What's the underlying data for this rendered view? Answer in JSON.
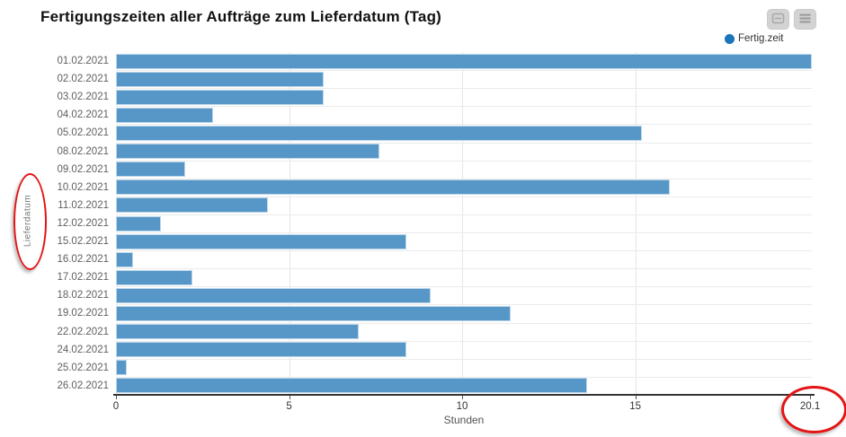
{
  "title": "Fertigungszeiten aller Aufträge zum Lieferdatum (Tag)",
  "toolbar": {
    "buttons": [
      {
        "name": "collapse",
        "icon": "window-collapse-icon"
      },
      {
        "name": "menu",
        "icon": "menu-icon"
      }
    ]
  },
  "legend": {
    "label": "Fertig.zeit",
    "color": "#1b75bb"
  },
  "chart_data": {
    "type": "bar",
    "orientation": "horizontal",
    "title": "Fertigungszeiten aller Aufträge zum Lieferdatum (Tag)",
    "series_name": "Fertig.zeit",
    "categories": [
      "01.02.2021",
      "02.02.2021",
      "03.02.2021",
      "04.02.2021",
      "05.02.2021",
      "08.02.2021",
      "09.02.2021",
      "10.02.2021",
      "11.02.2021",
      "12.02.2021",
      "15.02.2021",
      "16.02.2021",
      "17.02.2021",
      "18.02.2021",
      "19.02.2021",
      "22.02.2021",
      "24.02.2021",
      "25.02.2021",
      "26.02.2021"
    ],
    "values": [
      20.1,
      6.0,
      6.0,
      2.8,
      15.2,
      7.6,
      2.0,
      16.0,
      4.4,
      1.3,
      8.4,
      0.5,
      2.2,
      9.1,
      11.4,
      7.0,
      8.4,
      0.3,
      13.6
    ],
    "xlabel": "Stunden",
    "ylabel": "Lieferdatum",
    "xlim": [
      0,
      20.1
    ],
    "xticks": [
      {
        "value": 0,
        "label": "0"
      },
      {
        "value": 5,
        "label": "5"
      },
      {
        "value": 10,
        "label": "10"
      },
      {
        "value": 15,
        "label": "15"
      },
      {
        "value": 20.05,
        "label": "20.1"
      }
    ],
    "grid": "vertical gridlines at 5/10/15, light horizontal row separators",
    "legend_position": "top-right",
    "bar_color": "#5697c8"
  },
  "annotations": [
    {
      "shape": "ellipse",
      "color": "#e31414",
      "target": "y-axis title 'Lieferdatum'"
    },
    {
      "shape": "ellipse",
      "color": "#e31414",
      "target": "x-axis max tick label '20.1'"
    }
  ]
}
